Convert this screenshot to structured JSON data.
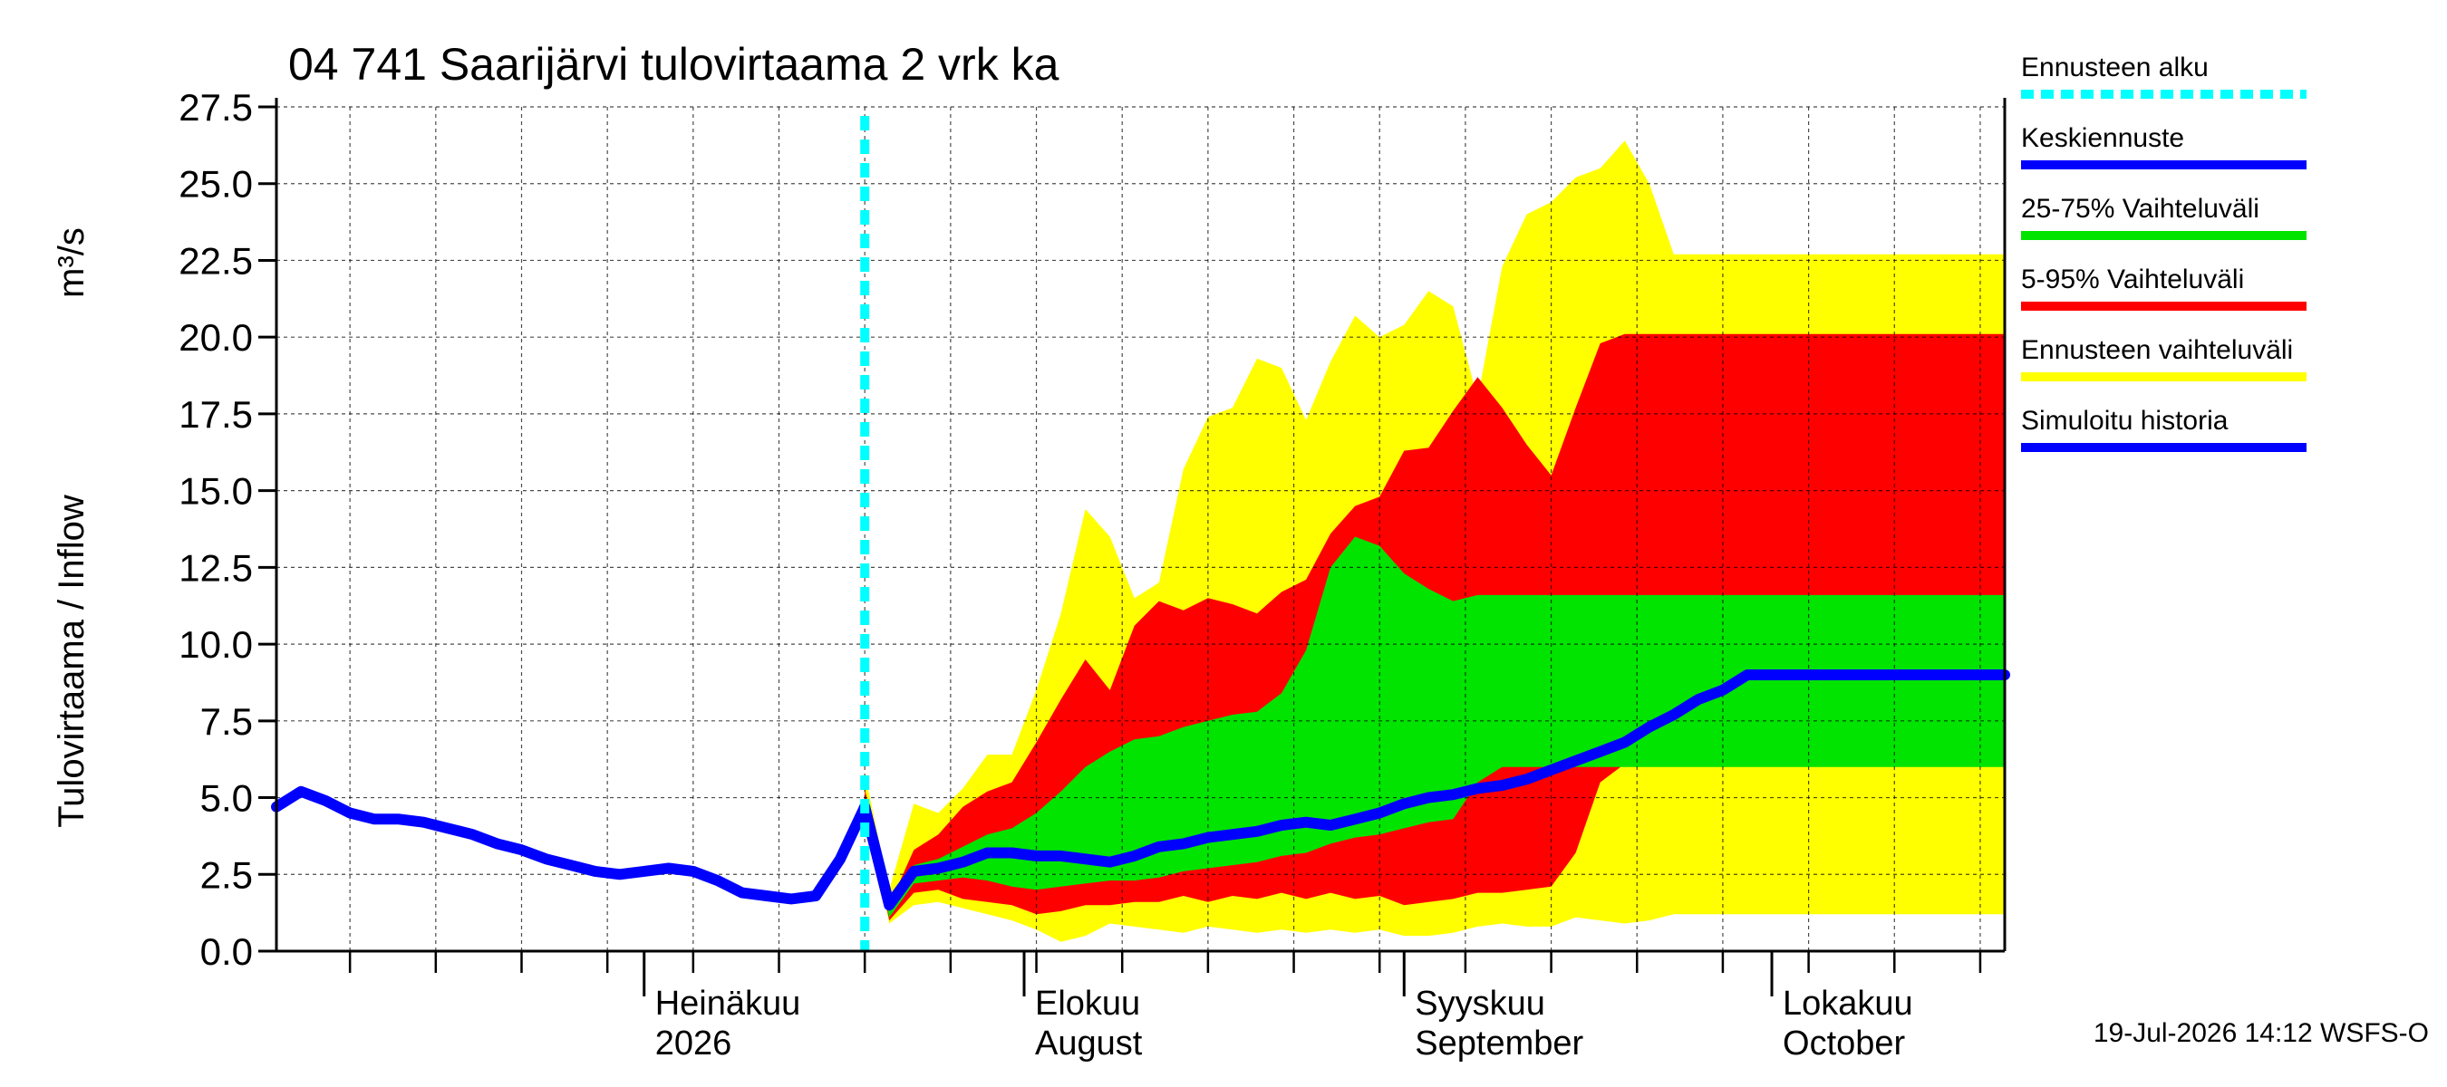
{
  "chart_data": {
    "type": "area",
    "title": "04 741 Saarijärvi tulovirtaama 2 vrk ka",
    "ylabel_fi": "Tulovirtaama / Inflow",
    "ylabel_unit": "m³/s",
    "ylim": [
      0,
      27.5
    ],
    "yticks": [
      "0.0",
      "2.5",
      "5.0",
      "7.5",
      "10.0",
      "12.5",
      "15.0",
      "17.5",
      "20.0",
      "22.5",
      "25.0",
      "27.5"
    ],
    "xlim": [
      "2026-06-01",
      "2026-10-20"
    ],
    "grid": true,
    "legend_position": "right",
    "month_labels": [
      {
        "fi": "Heinäkuu",
        "en": "2026",
        "date": "2026-07-01"
      },
      {
        "fi": "Elokuu",
        "en": "August",
        "date": "2026-08-01"
      },
      {
        "fi": "Syyskuu",
        "en": "September",
        "date": "2026-09-01"
      },
      {
        "fi": "Lokakuu",
        "en": "October",
        "date": "2026-10-01"
      }
    ],
    "forecast_start": "2026-07-19",
    "forecast_dates": [
      "2026-07-19",
      "2026-07-21",
      "2026-07-23",
      "2026-07-25",
      "2026-07-27",
      "2026-07-29",
      "2026-07-31",
      "2026-08-02",
      "2026-08-04",
      "2026-08-06",
      "2026-08-08",
      "2026-08-10",
      "2026-08-12",
      "2026-08-14",
      "2026-08-16",
      "2026-08-18",
      "2026-08-20",
      "2026-08-22",
      "2026-08-24",
      "2026-08-26",
      "2026-08-28",
      "2026-08-30",
      "2026-09-01",
      "2026-09-03",
      "2026-09-05",
      "2026-09-07",
      "2026-09-09",
      "2026-09-11",
      "2026-09-13",
      "2026-09-15",
      "2026-09-17",
      "2026-09-19",
      "2026-09-21",
      "2026-09-23",
      "2026-09-25",
      "2026-09-27",
      "2026-09-29",
      "2026-10-01",
      "2026-10-03",
      "2026-10-05",
      "2026-10-07",
      "2026-10-09",
      "2026-10-11",
      "2026-10-13",
      "2026-10-15",
      "2026-10-17",
      "2026-10-20"
    ],
    "series": [
      {
        "name": "Ennusteen vaihteluväli",
        "color": "#ffff00",
        "upper": [
          5.8,
          2.0,
          4.8,
          4.5,
          5.3,
          6.4,
          6.4,
          8.5,
          11.0,
          14.4,
          13.5,
          11.5,
          12.0,
          15.7,
          17.4,
          17.7,
          19.3,
          19.0,
          17.3,
          19.2,
          20.7,
          20.0,
          20.4,
          21.5,
          21.0,
          18.0,
          22.3,
          24.0,
          24.4,
          25.2,
          25.5,
          26.4,
          25.0,
          22.7,
          22.7,
          22.7,
          22.7,
          22.7,
          22.7,
          22.7,
          22.7,
          22.7,
          22.7,
          22.7,
          22.7,
          22.7,
          22.7
        ],
        "lower": [
          4.8,
          0.9,
          1.5,
          1.6,
          1.4,
          1.2,
          1.0,
          0.7,
          0.3,
          0.5,
          0.9,
          0.8,
          0.7,
          0.6,
          0.8,
          0.7,
          0.6,
          0.7,
          0.6,
          0.7,
          0.6,
          0.7,
          0.5,
          0.5,
          0.6,
          0.8,
          0.9,
          0.8,
          0.8,
          1.1,
          1.0,
          0.9,
          1.0,
          1.2,
          1.2,
          1.2,
          1.2,
          1.2,
          1.2,
          1.2,
          1.2,
          1.2,
          1.2,
          1.2,
          1.2,
          1.2,
          1.2
        ]
      },
      {
        "name": "5-95% Vaihteluväli",
        "color": "#ff0000",
        "upper": [
          5.3,
          1.5,
          3.3,
          3.8,
          4.7,
          5.2,
          5.5,
          6.8,
          8.2,
          9.5,
          8.5,
          10.6,
          11.4,
          11.1,
          11.5,
          11.3,
          11.0,
          11.7,
          12.1,
          13.6,
          14.5,
          14.8,
          16.3,
          16.4,
          17.6,
          18.7,
          17.7,
          16.5,
          15.5,
          17.7,
          19.8,
          20.1,
          20.1,
          20.1,
          20.1,
          20.1,
          20.1,
          20.1,
          20.1,
          20.1,
          20.1,
          20.1,
          20.1,
          20.1,
          20.1,
          20.1,
          20.1
        ],
        "lower": [
          4.9,
          1.0,
          1.9,
          2.0,
          1.7,
          1.6,
          1.5,
          1.2,
          1.3,
          1.5,
          1.5,
          1.6,
          1.6,
          1.8,
          1.6,
          1.8,
          1.7,
          1.9,
          1.7,
          1.9,
          1.7,
          1.8,
          1.5,
          1.6,
          1.7,
          1.9,
          1.9,
          2.0,
          2.1,
          3.2,
          5.5,
          6.1,
          6.1,
          6.1,
          6.1,
          6.1,
          6.1,
          6.1,
          6.1,
          6.1,
          6.1,
          6.1,
          6.1,
          6.1,
          6.1,
          6.1,
          6.1
        ]
      },
      {
        "name": "25-75% Vaihteluväli",
        "color": "#00e400",
        "upper": [
          5.0,
          1.3,
          2.8,
          3.0,
          3.4,
          3.8,
          4.0,
          4.5,
          5.2,
          6.0,
          6.5,
          6.9,
          7.0,
          7.3,
          7.5,
          7.7,
          7.8,
          8.4,
          9.8,
          12.5,
          13.5,
          13.2,
          12.3,
          11.8,
          11.4,
          11.6,
          11.6,
          11.6,
          11.6,
          11.6,
          11.6,
          11.6,
          11.6,
          11.6,
          11.6,
          11.6,
          11.6,
          11.6,
          11.6,
          11.6,
          11.6,
          11.6,
          11.6,
          11.6,
          11.6,
          11.6,
          11.6
        ],
        "lower": [
          4.9,
          1.1,
          2.2,
          2.3,
          2.4,
          2.3,
          2.1,
          2.0,
          2.1,
          2.2,
          2.3,
          2.3,
          2.4,
          2.6,
          2.7,
          2.8,
          2.9,
          3.1,
          3.2,
          3.5,
          3.7,
          3.8,
          4.0,
          4.2,
          4.3,
          5.5,
          6.0,
          6.0,
          6.0,
          6.0,
          6.0,
          6.0,
          6.0,
          6.0,
          6.0,
          6.0,
          6.0,
          6.0,
          6.0,
          6.0,
          6.0,
          6.0,
          6.0,
          6.0,
          6.0,
          6.0,
          6.0
        ]
      },
      {
        "name": "Keskiennuste",
        "color": "#0000ff",
        "values": [
          4.7,
          1.5,
          2.6,
          2.7,
          2.9,
          3.2,
          3.2,
          3.1,
          3.1,
          3.0,
          2.9,
          3.1,
          3.4,
          3.5,
          3.7,
          3.8,
          3.9,
          4.1,
          4.2,
          4.1,
          4.3,
          4.5,
          4.8,
          5.0,
          5.1,
          5.3,
          5.4,
          5.6,
          5.9,
          6.2,
          6.5,
          6.8,
          7.3,
          7.7,
          8.2,
          8.5,
          9.0,
          9.0,
          9.0,
          9.0,
          9.0,
          9.0,
          9.0,
          9.0,
          9.0,
          9.0,
          9.0
        ]
      },
      {
        "name": "Simuloitu historia",
        "color": "#0000ff",
        "dates": [
          "2026-06-01",
          "2026-06-03",
          "2026-06-05",
          "2026-06-07",
          "2026-06-09",
          "2026-06-11",
          "2026-06-13",
          "2026-06-15",
          "2026-06-17",
          "2026-06-19",
          "2026-06-21",
          "2026-06-23",
          "2026-06-25",
          "2026-06-27",
          "2026-06-29",
          "2026-07-01",
          "2026-07-03",
          "2026-07-05",
          "2026-07-07",
          "2026-07-09",
          "2026-07-11",
          "2026-07-13",
          "2026-07-15",
          "2026-07-17",
          "2026-07-19"
        ],
        "values": [
          4.7,
          5.2,
          4.9,
          4.5,
          4.3,
          4.3,
          4.2,
          4.0,
          3.8,
          3.5,
          3.3,
          3.0,
          2.8,
          2.6,
          2.5,
          2.6,
          2.7,
          2.6,
          2.3,
          1.9,
          1.8,
          1.7,
          1.8,
          3.0,
          4.7
        ]
      }
    ],
    "legend": [
      {
        "label": "Ennusteen alku",
        "color": "#00ffff",
        "dashed": true
      },
      {
        "label": "Keskiennuste",
        "color": "#0000ff",
        "dashed": false
      },
      {
        "label": "25-75% Vaihteluväli",
        "color": "#00e400",
        "dashed": false
      },
      {
        "label": "5-95% Vaihteluväli",
        "color": "#ff0000",
        "dashed": false
      },
      {
        "label": "Ennusteen vaihteluväli",
        "color": "#ffff00",
        "dashed": false
      },
      {
        "label": "Simuloitu historia",
        "color": "#0000ff",
        "dashed": false
      }
    ],
    "timestamp": "19-Jul-2026 14:12 WSFS-O"
  }
}
